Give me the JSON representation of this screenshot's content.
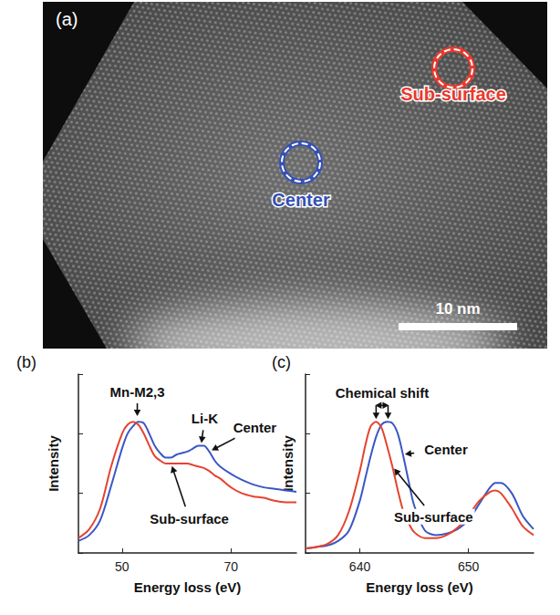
{
  "image": {
    "label": "(a)",
    "regions": [
      {
        "label": "Center",
        "color": "#3550b4"
      },
      {
        "label": "Sub-surface",
        "color": "#e8392d"
      }
    ],
    "scale_bar": "10 nm"
  },
  "chart_data": [
    {
      "type": "line",
      "title": "(b)",
      "x_label": "Energy loss (eV)",
      "y_label": "Intensity",
      "x": [
        42,
        44,
        46,
        48,
        50,
        51,
        52,
        53,
        54,
        55,
        56,
        57,
        58,
        59,
        60,
        61,
        62,
        63,
        64,
        65,
        66,
        67,
        68,
        70,
        72,
        74,
        76,
        78,
        80,
        82
      ],
      "series": [
        {
          "name": "Center",
          "color": "#3a57c4",
          "values": [
            0.08,
            0.12,
            0.22,
            0.45,
            0.7,
            0.8,
            0.85,
            0.88,
            0.87,
            0.8,
            0.72,
            0.67,
            0.64,
            0.64,
            0.66,
            0.67,
            0.68,
            0.7,
            0.72,
            0.72,
            0.68,
            0.62,
            0.58,
            0.53,
            0.49,
            0.46,
            0.44,
            0.43,
            0.42,
            0.41
          ]
        },
        {
          "name": "Sub-surface",
          "color": "#e5432f",
          "values": [
            0.1,
            0.16,
            0.3,
            0.58,
            0.8,
            0.86,
            0.88,
            0.86,
            0.8,
            0.72,
            0.65,
            0.62,
            0.6,
            0.6,
            0.6,
            0.6,
            0.6,
            0.59,
            0.58,
            0.57,
            0.55,
            0.52,
            0.5,
            0.44,
            0.4,
            0.38,
            0.37,
            0.35,
            0.34,
            0.34
          ]
        }
      ],
      "xlim": [
        42,
        82
      ],
      "xticks": [
        50,
        70
      ],
      "ylim": [
        0,
        1.2
      ],
      "yticks": [
        0,
        0.4,
        0.8,
        1.2
      ],
      "tick_labels": "x",
      "grid": false,
      "annotations": [
        {
          "text": "Mn-M2,3",
          "x": 52.8,
          "y": 0.9
        },
        {
          "text": "Li-K",
          "x": 64.5,
          "y": 0.72
        },
        {
          "series": "Center",
          "x": 66,
          "y": 0.68
        },
        {
          "series": "Sub-surface",
          "x": 59,
          "y": 0.6
        }
      ]
    },
    {
      "type": "line",
      "title": "(c)",
      "x_label": "Energy loss (eV)",
      "y_label": "Intensity",
      "x": [
        635,
        636,
        637,
        638,
        639,
        640,
        640.5,
        641,
        641.5,
        642,
        642.5,
        643,
        643.5,
        644,
        644.5,
        645,
        646,
        647,
        648,
        649,
        650,
        651,
        652,
        652.5,
        653,
        654,
        655,
        656
      ],
      "series": [
        {
          "name": "Center",
          "color": "#3a57c4",
          "values": [
            0.03,
            0.04,
            0.05,
            0.08,
            0.15,
            0.35,
            0.5,
            0.65,
            0.78,
            0.86,
            0.88,
            0.87,
            0.8,
            0.65,
            0.48,
            0.32,
            0.15,
            0.12,
            0.13,
            0.16,
            0.22,
            0.33,
            0.44,
            0.47,
            0.47,
            0.4,
            0.25,
            0.16
          ]
        },
        {
          "name": "Sub-surface",
          "color": "#e5432f",
          "values": [
            0.03,
            0.04,
            0.06,
            0.12,
            0.28,
            0.55,
            0.72,
            0.85,
            0.88,
            0.84,
            0.72,
            0.58,
            0.42,
            0.28,
            0.2,
            0.14,
            0.1,
            0.1,
            0.12,
            0.17,
            0.25,
            0.35,
            0.41,
            0.42,
            0.4,
            0.3,
            0.18,
            0.12
          ]
        }
      ],
      "xlim": [
        635,
        656
      ],
      "xticks": [
        640,
        650
      ],
      "ylim": [
        0,
        1.2
      ],
      "yticks": [
        0,
        0.4,
        0.8,
        1.2
      ],
      "tick_labels": "x",
      "grid": false,
      "annotations": [
        {
          "text": "Chemical shift",
          "x": [
            641.5,
            642.6
          ],
          "y": 0.88
        },
        {
          "series": "Center",
          "x": 643.9,
          "y": 0.66
        },
        {
          "series": "Sub-surface",
          "x": 643,
          "y": 0.58
        }
      ]
    }
  ]
}
